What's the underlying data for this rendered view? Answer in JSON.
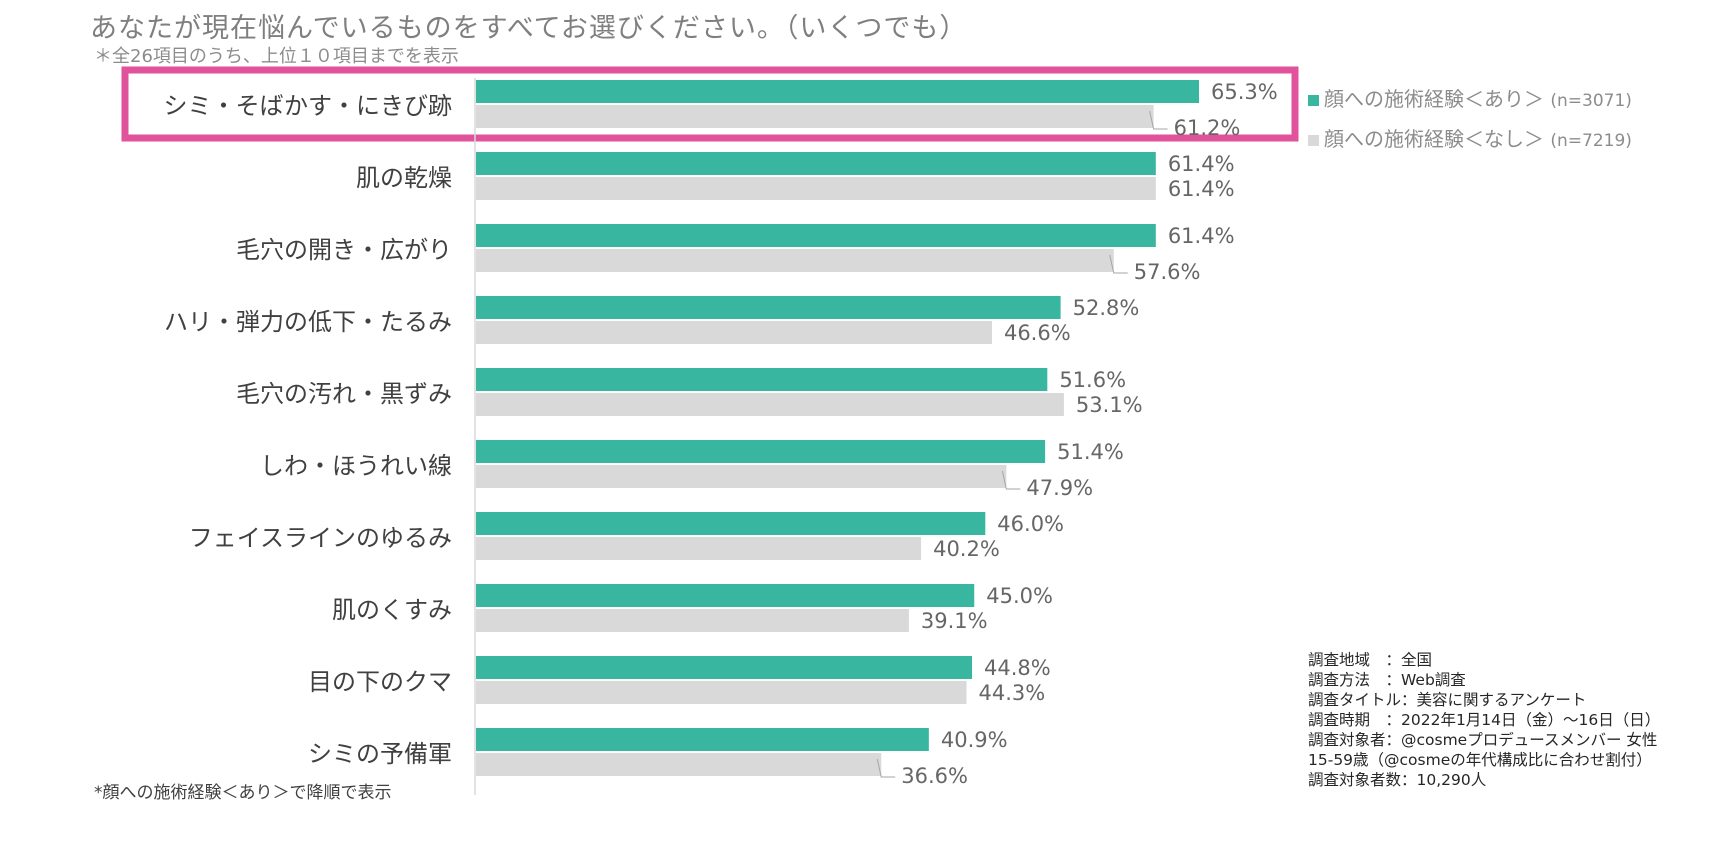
{
  "colors": {
    "series_1": "#38b6a0",
    "series_2": "#d9d9d9",
    "highlight": "#e0529b"
  },
  "chart_data": {
    "type": "bar",
    "orientation": "horizontal",
    "title": "あなたが現在悩んでいるものをすべてお選びください。（いくつでも）",
    "subtitle": "＊全26項目のうち、上位１０項目までを表示",
    "footnote": "*顔への施術経験＜あり＞で降順で表示",
    "categories": [
      "シミ・そばかす・にきび跡",
      "肌の乾燥",
      "毛穴の開き・広がり",
      "ハリ・弾力の低下・たるみ",
      "毛穴の汚れ・黒ずみ",
      "しわ・ほうれい線",
      "フェイスラインのゆるみ",
      "肌のくすみ",
      "目の下のクマ",
      "シミの予備軍"
    ],
    "series": [
      {
        "name": "顔への施術経験＜あり＞",
        "n_label": "(n=3071)",
        "values": [
          65.3,
          61.4,
          61.4,
          52.8,
          51.6,
          51.4,
          46.0,
          45.0,
          44.8,
          40.9
        ]
      },
      {
        "name": "顔への施術経験＜なし＞",
        "n_label": "(n=7219)",
        "values": [
          61.2,
          61.4,
          57.6,
          46.6,
          53.1,
          47.9,
          40.2,
          39.1,
          44.3,
          36.6
        ]
      }
    ],
    "value_suffix": "%",
    "xlim": [
      0,
      100
    ],
    "legend_position": "top-right",
    "highlighted_category": "シミ・そばかす・にきび跡"
  },
  "survey_info": [
    "調査地域　：全国",
    "調査方法　：Web調査",
    "調査タイトル：美容に関するアンケート",
    "調査時期　：2022年1月14日（金）～16日（日）",
    "調査対象者：@cosmeプロデュースメンバー 女性",
    "15-59歳（@cosmeの年代構成比に合わせ割付）",
    "調査対象者数：10,290人"
  ]
}
